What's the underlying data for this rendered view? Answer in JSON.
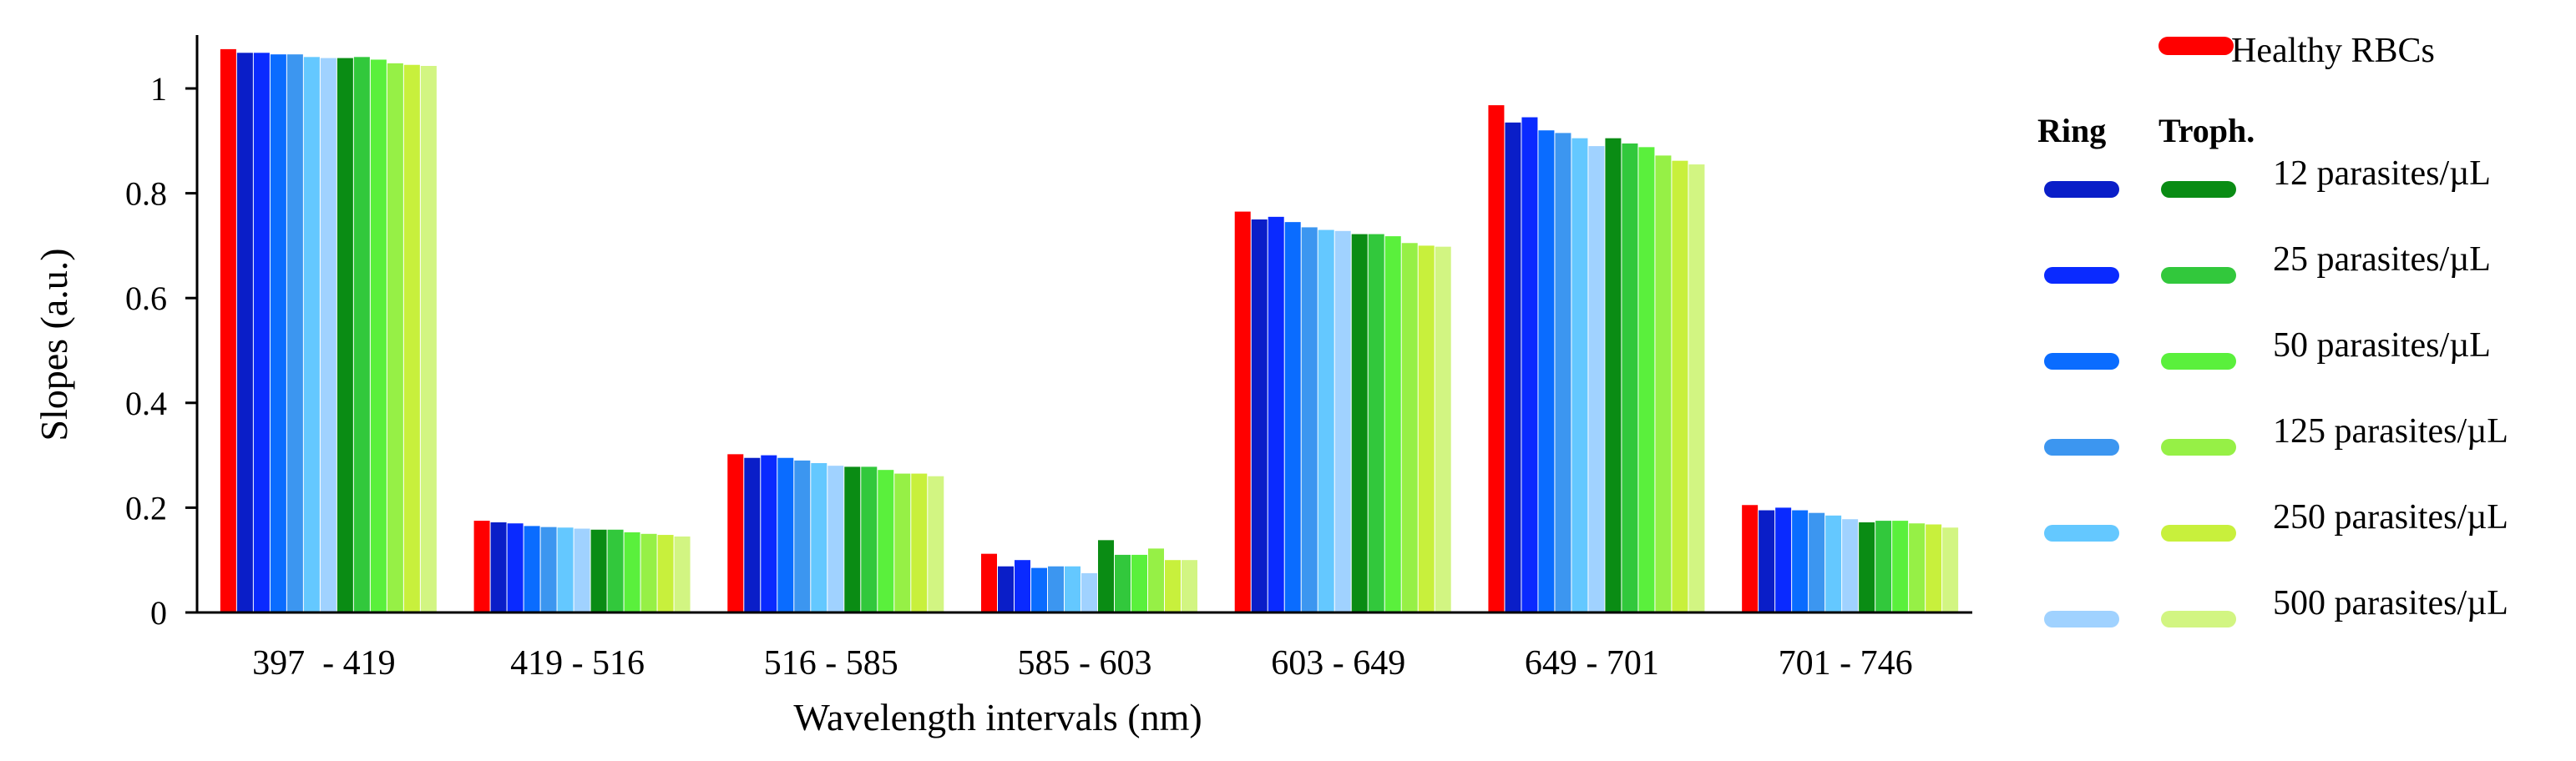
{
  "chart_data": {
    "type": "bar",
    "title": "",
    "xlabel": "Wavelength intervals (nm)",
    "ylabel": "Slopes (a.u.)",
    "ylim": [
      0,
      1.1
    ],
    "yticks": [
      0,
      0.2,
      0.4,
      0.6,
      0.8,
      1
    ],
    "ytick_labels": [
      "0",
      "0.2",
      "0.4",
      "0.6",
      "0.8",
      "1"
    ],
    "grid": false,
    "categories": [
      "397  - 419",
      "419 - 516",
      "516 - 585",
      "585 - 603",
      "603 - 649",
      "649 - 701",
      "701 - 746"
    ],
    "series": [
      {
        "name": "Healthy RBCs",
        "group": "Healthy",
        "color": "#ff0000",
        "values": [
          1.075,
          0.175,
          0.302,
          0.112,
          0.765,
          0.968,
          0.205
        ]
      },
      {
        "name": "Ring 12 parasites/µL",
        "group": "Ring",
        "color": "#0a1ec8",
        "values": [
          1.068,
          0.172,
          0.295,
          0.088,
          0.75,
          0.935,
          0.195
        ]
      },
      {
        "name": "Ring 25 parasites/µL",
        "group": "Ring",
        "color": "#0a2aff",
        "values": [
          1.068,
          0.17,
          0.3,
          0.1,
          0.755,
          0.945,
          0.2
        ]
      },
      {
        "name": "Ring 50 parasites/µL",
        "group": "Ring",
        "color": "#0a6cff",
        "values": [
          1.065,
          0.165,
          0.295,
          0.085,
          0.745,
          0.92,
          0.195
        ]
      },
      {
        "name": "Ring 125 parasites/µL",
        "group": "Ring",
        "color": "#3c96f0",
        "values": [
          1.065,
          0.163,
          0.29,
          0.088,
          0.735,
          0.915,
          0.19
        ]
      },
      {
        "name": "Ring 250 parasites/µL",
        "group": "Ring",
        "color": "#64c8ff",
        "values": [
          1.06,
          0.162,
          0.285,
          0.088,
          0.73,
          0.905,
          0.185
        ]
      },
      {
        "name": "Ring 500 parasites/µL",
        "group": "Ring",
        "color": "#a0d2ff",
        "values": [
          1.058,
          0.16,
          0.28,
          0.075,
          0.728,
          0.89,
          0.178
        ]
      },
      {
        "name": "Troph. 12 parasites/µL",
        "group": "Troph.",
        "color": "#0a8c14",
        "values": [
          1.058,
          0.158,
          0.278,
          0.138,
          0.722,
          0.905,
          0.172
        ]
      },
      {
        "name": "Troph. 25 parasites/µL",
        "group": "Troph.",
        "color": "#32c83c",
        "values": [
          1.06,
          0.158,
          0.278,
          0.11,
          0.722,
          0.895,
          0.175
        ]
      },
      {
        "name": "Troph. 50 parasites/µL",
        "group": "Troph.",
        "color": "#5af03c",
        "values": [
          1.055,
          0.153,
          0.272,
          0.11,
          0.718,
          0.888,
          0.175
        ]
      },
      {
        "name": "Troph. 125 parasites/µL",
        "group": "Troph.",
        "color": "#96f046",
        "values": [
          1.048,
          0.15,
          0.265,
          0.122,
          0.705,
          0.872,
          0.17
        ]
      },
      {
        "name": "Troph. 250 parasites/µL",
        "group": "Troph.",
        "color": "#c8f03c",
        "values": [
          1.045,
          0.148,
          0.265,
          0.1,
          0.7,
          0.862,
          0.168
        ]
      },
      {
        "name": "Troph. 500 parasites/µL",
        "group": "Troph.",
        "color": "#d2f582",
        "values": [
          1.043,
          0.145,
          0.26,
          0.1,
          0.698,
          0.855,
          0.162
        ]
      }
    ],
    "legend": {
      "placement": "right",
      "healthy_label": "Healthy RBCs",
      "ring_header": "Ring",
      "troph_header": "Troph.",
      "density_labels": [
        "12 parasites/µL",
        "25 parasites/µL",
        "50 parasites/µL",
        "125 parasites/µL",
        "250 parasites/µL",
        "500 parasites/µL"
      ]
    }
  }
}
